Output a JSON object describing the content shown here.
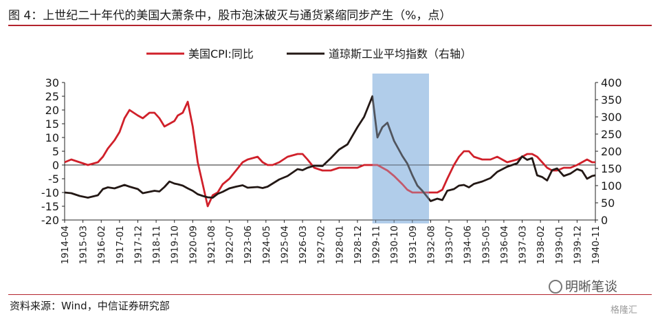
{
  "title": "图 4：上世纪二十年代的美国大萧条中，股市泡沫破灭与通货紧缩同步产生（%，点）",
  "source": "资料来源：Wind，中信证券研究部",
  "watermark": "明晰笔谈",
  "watermark_sub": "格隆汇",
  "colors": {
    "cpi": "#d0202a",
    "dow": "#231815",
    "shade": "#a9c8e8",
    "rule": "#b3232d"
  },
  "chart_data": {
    "type": "line",
    "legend_position": "top",
    "grid": false,
    "x_ticks": [
      "1914-04",
      "1915-03",
      "1916-02",
      "1917-01",
      "1917-12",
      "1918-11",
      "1919-10",
      "1920-09",
      "1921-08",
      "1922-07",
      "1923-06",
      "1924-05",
      "1925-04",
      "1926-03",
      "1927-02",
      "1928-01",
      "1928-12",
      "1929-11",
      "1930-10",
      "1931-09",
      "1932-08",
      "1933-07",
      "1934-06",
      "1935-05",
      "1936-04",
      "1937-03",
      "1938-02",
      "1939-01",
      "1939-12",
      "1940-11"
    ],
    "x_range": [
      "1914-04",
      "1940-11"
    ],
    "y_left": {
      "range": [
        -20,
        30
      ],
      "ticks": [
        -20,
        -15,
        -10,
        -5,
        0,
        5,
        10,
        15,
        20,
        25,
        30
      ]
    },
    "y_right": {
      "range": [
        0,
        400
      ],
      "ticks": [
        0,
        50,
        100,
        150,
        200,
        250,
        300,
        350,
        400
      ]
    },
    "shaded_range": [
      "1929-09",
      "1932-07"
    ],
    "series": [
      {
        "name": "美国CPI:同比",
        "axis": "left",
        "points": [
          [
            "1914-04",
            1
          ],
          [
            "1914-08",
            2
          ],
          [
            "1915-01",
            1
          ],
          [
            "1915-06",
            0
          ],
          [
            "1915-12",
            1
          ],
          [
            "1916-03",
            3
          ],
          [
            "1916-06",
            6
          ],
          [
            "1916-10",
            9
          ],
          [
            "1917-01",
            12
          ],
          [
            "1917-04",
            17
          ],
          [
            "1917-07",
            20
          ],
          [
            "1917-12",
            18
          ],
          [
            "1918-03",
            17
          ],
          [
            "1918-07",
            19
          ],
          [
            "1918-10",
            19
          ],
          [
            "1919-01",
            17
          ],
          [
            "1919-04",
            14
          ],
          [
            "1919-07",
            15
          ],
          [
            "1919-10",
            16
          ],
          [
            "1919-12",
            18
          ],
          [
            "1920-03",
            19
          ],
          [
            "1920-06",
            23
          ],
          [
            "1920-09",
            14
          ],
          [
            "1920-12",
            1
          ],
          [
            "1921-03",
            -7
          ],
          [
            "1921-06",
            -15
          ],
          [
            "1921-09",
            -11
          ],
          [
            "1921-12",
            -10
          ],
          [
            "1922-03",
            -7
          ],
          [
            "1922-07",
            -5
          ],
          [
            "1922-11",
            -2
          ],
          [
            "1923-03",
            1
          ],
          [
            "1923-06",
            2
          ],
          [
            "1923-12",
            3
          ],
          [
            "1924-03",
            1
          ],
          [
            "1924-06",
            0
          ],
          [
            "1924-09",
            0
          ],
          [
            "1925-01",
            1
          ],
          [
            "1925-06",
            3
          ],
          [
            "1925-12",
            4
          ],
          [
            "1926-03",
            4
          ],
          [
            "1926-06",
            2
          ],
          [
            "1926-10",
            -1
          ],
          [
            "1927-03",
            -2
          ],
          [
            "1927-08",
            -2
          ],
          [
            "1928-01",
            -1
          ],
          [
            "1928-06",
            -1
          ],
          [
            "1928-12",
            -1
          ],
          [
            "1929-04",
            0
          ],
          [
            "1929-09",
            0
          ],
          [
            "1929-12",
            0
          ],
          [
            "1930-03",
            -1
          ],
          [
            "1930-06",
            -2
          ],
          [
            "1930-10",
            -4
          ],
          [
            "1931-03",
            -7
          ],
          [
            "1931-06",
            -9
          ],
          [
            "1931-09",
            -10
          ],
          [
            "1931-12",
            -10
          ],
          [
            "1932-03",
            -10
          ],
          [
            "1932-08",
            -10
          ],
          [
            "1932-12",
            -10
          ],
          [
            "1933-03",
            -9
          ],
          [
            "1933-06",
            -5
          ],
          [
            "1933-10",
            0
          ],
          [
            "1934-01",
            3
          ],
          [
            "1934-04",
            5
          ],
          [
            "1934-07",
            5
          ],
          [
            "1934-10",
            3
          ],
          [
            "1935-03",
            2
          ],
          [
            "1935-08",
            2
          ],
          [
            "1935-12",
            3
          ],
          [
            "1936-06",
            1
          ],
          [
            "1936-12",
            2
          ],
          [
            "1937-03",
            3
          ],
          [
            "1937-06",
            4
          ],
          [
            "1937-09",
            4
          ],
          [
            "1937-12",
            3
          ],
          [
            "1938-03",
            1
          ],
          [
            "1938-06",
            -1
          ],
          [
            "1938-09",
            -2
          ],
          [
            "1938-12",
            -2
          ],
          [
            "1939-04",
            -1
          ],
          [
            "1939-08",
            -1
          ],
          [
            "1939-12",
            0
          ],
          [
            "1940-03",
            1
          ],
          [
            "1940-06",
            2
          ],
          [
            "1940-09",
            1
          ],
          [
            "1940-11",
            1
          ]
        ]
      },
      {
        "name": "道琼斯工业平均指数（右轴）",
        "axis": "right",
        "points": [
          [
            "1914-04",
            80
          ],
          [
            "1914-08",
            78
          ],
          [
            "1915-01",
            70
          ],
          [
            "1915-06",
            65
          ],
          [
            "1915-12",
            72
          ],
          [
            "1916-03",
            90
          ],
          [
            "1916-06",
            95
          ],
          [
            "1916-10",
            92
          ],
          [
            "1917-01",
            97
          ],
          [
            "1917-04",
            102
          ],
          [
            "1917-07",
            97
          ],
          [
            "1917-12",
            90
          ],
          [
            "1918-03",
            78
          ],
          [
            "1918-07",
            82
          ],
          [
            "1918-10",
            85
          ],
          [
            "1919-01",
            83
          ],
          [
            "1919-04",
            96
          ],
          [
            "1919-07",
            112
          ],
          [
            "1919-10",
            106
          ],
          [
            "1919-12",
            104
          ],
          [
            "1920-03",
            100
          ],
          [
            "1920-06",
            92
          ],
          [
            "1920-09",
            85
          ],
          [
            "1920-12",
            75
          ],
          [
            "1921-03",
            70
          ],
          [
            "1921-06",
            66
          ],
          [
            "1921-09",
            65
          ],
          [
            "1921-12",
            76
          ],
          [
            "1922-03",
            82
          ],
          [
            "1922-07",
            92
          ],
          [
            "1922-11",
            97
          ],
          [
            "1923-03",
            101
          ],
          [
            "1923-06",
            94
          ],
          [
            "1923-12",
            96
          ],
          [
            "1924-03",
            93
          ],
          [
            "1924-06",
            97
          ],
          [
            "1924-09",
            106
          ],
          [
            "1925-01",
            118
          ],
          [
            "1925-06",
            128
          ],
          [
            "1925-12",
            148
          ],
          [
            "1926-03",
            145
          ],
          [
            "1926-06",
            152
          ],
          [
            "1926-10",
            158
          ],
          [
            "1927-03",
            157
          ],
          [
            "1927-08",
            180
          ],
          [
            "1928-01",
            205
          ],
          [
            "1928-06",
            220
          ],
          [
            "1928-12",
            270
          ],
          [
            "1929-04",
            300
          ],
          [
            "1929-09",
            360
          ],
          [
            "1929-12",
            240
          ],
          [
            "1930-03",
            270
          ],
          [
            "1930-06",
            283
          ],
          [
            "1930-10",
            230
          ],
          [
            "1931-03",
            186
          ],
          [
            "1931-06",
            164
          ],
          [
            "1931-09",
            130
          ],
          [
            "1931-12",
            100
          ],
          [
            "1932-03",
            85
          ],
          [
            "1932-08",
            55
          ],
          [
            "1932-12",
            62
          ],
          [
            "1933-03",
            58
          ],
          [
            "1933-06",
            85
          ],
          [
            "1933-10",
            90
          ],
          [
            "1934-01",
            100
          ],
          [
            "1934-04",
            102
          ],
          [
            "1934-07",
            95
          ],
          [
            "1934-10",
            105
          ],
          [
            "1935-03",
            112
          ],
          [
            "1935-08",
            122
          ],
          [
            "1935-12",
            140
          ],
          [
            "1936-06",
            155
          ],
          [
            "1936-12",
            165
          ],
          [
            "1937-03",
            185
          ],
          [
            "1937-06",
            175
          ],
          [
            "1937-09",
            180
          ],
          [
            "1937-12",
            130
          ],
          [
            "1938-03",
            125
          ],
          [
            "1938-06",
            115
          ],
          [
            "1938-09",
            145
          ],
          [
            "1938-12",
            150
          ],
          [
            "1939-04",
            128
          ],
          [
            "1939-08",
            135
          ],
          [
            "1939-12",
            148
          ],
          [
            "1940-03",
            143
          ],
          [
            "1940-06",
            120
          ],
          [
            "1940-09",
            128
          ],
          [
            "1940-11",
            130
          ]
        ]
      }
    ]
  }
}
